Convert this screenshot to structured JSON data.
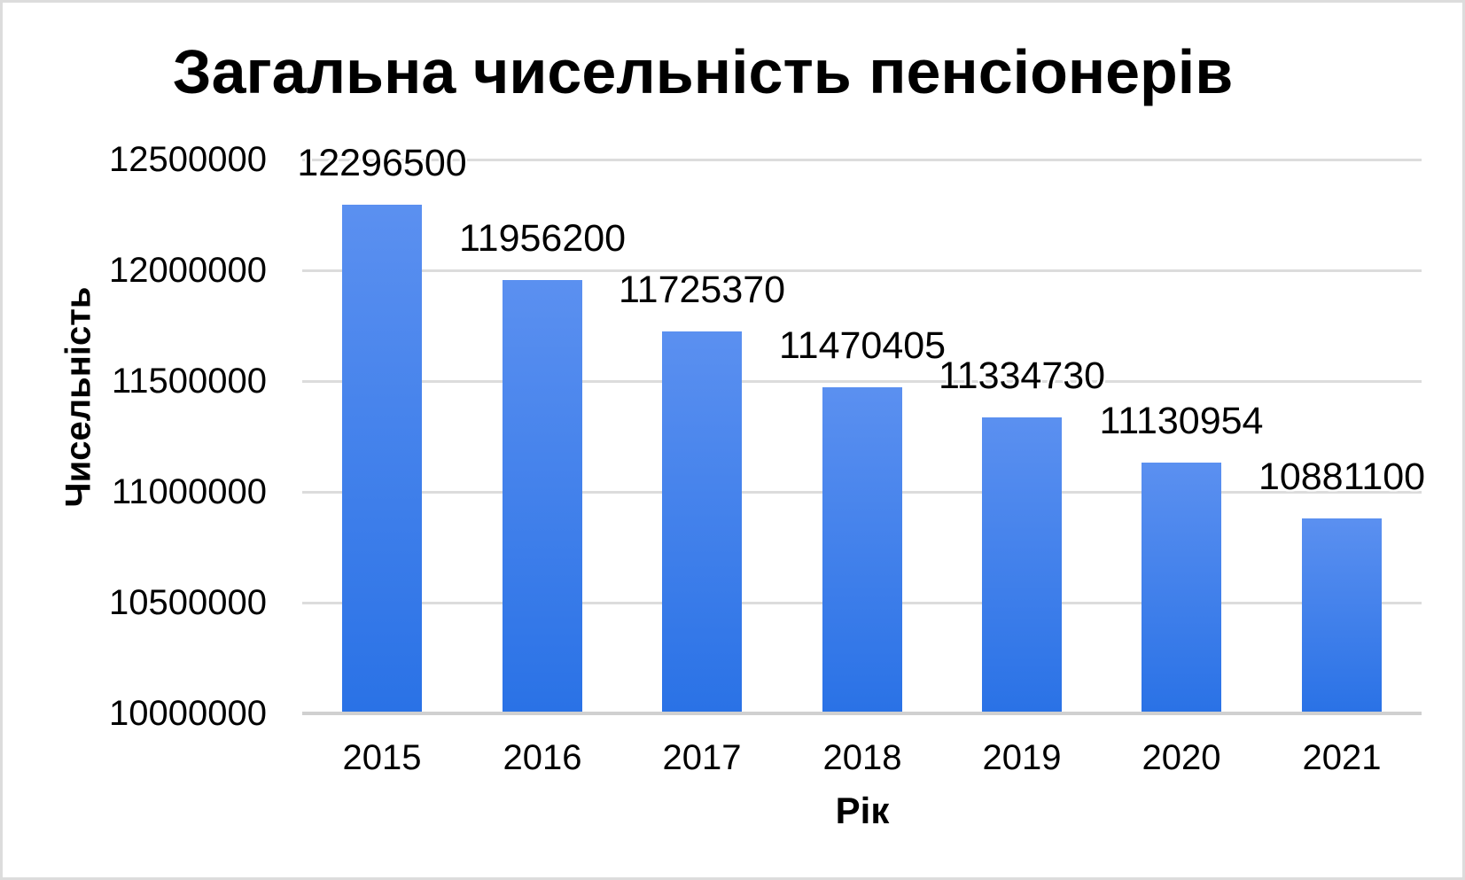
{
  "frame": {
    "background_color": "#ffffff",
    "border_color": "#dcdcdc"
  },
  "chart_data": {
    "type": "bar",
    "title": "Загальна чисельність пенсіонерів",
    "xlabel": "Рік",
    "ylabel": "Чисельність",
    "categories": [
      "2015",
      "2016",
      "2017",
      "2018",
      "2019",
      "2020",
      "2021"
    ],
    "values": [
      12296500,
      11956200,
      11725370,
      11470405,
      11334730,
      11130954,
      10881100
    ],
    "data_labels": [
      "12296500",
      "11956200",
      "11725370",
      "11470405",
      "11334730",
      "11130954",
      "10881100"
    ],
    "ylim": [
      10000000,
      12500000
    ],
    "yticks": [
      10000000,
      10500000,
      11000000,
      11500000,
      12000000,
      12500000
    ],
    "ytick_labels": [
      "10000000",
      "10500000",
      "11000000",
      "11500000",
      "12000000",
      "12500000"
    ],
    "grid": true,
    "legend_position": "none",
    "colors": {
      "bar_gradient_top": "#5b90f0",
      "bar_gradient_bottom": "#2a72e6",
      "gridline": "#dcdcdc",
      "axis_line": "#d0d0d0",
      "text": "#000000"
    }
  }
}
